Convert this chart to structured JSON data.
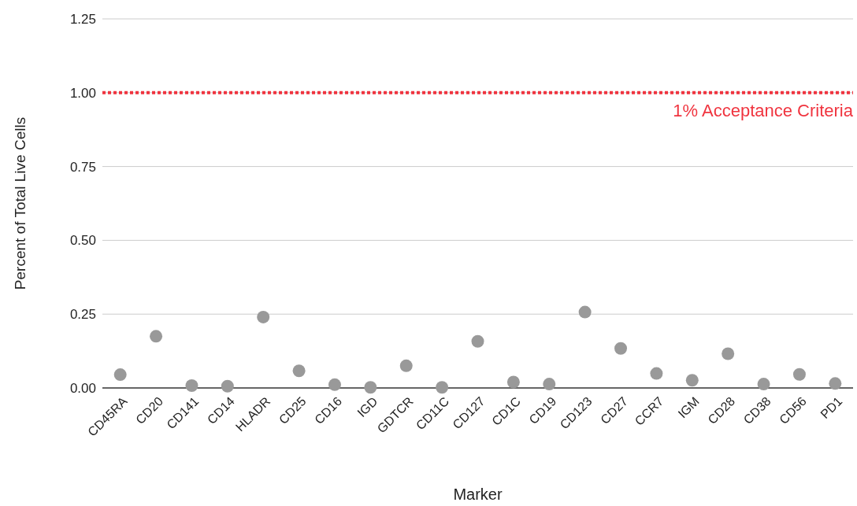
{
  "chart_data": {
    "type": "scatter",
    "xlabel": "Marker",
    "ylabel": "Percent of Total Live Cells",
    "categories": [
      "CD45RA",
      "CD20",
      "CD141",
      "CD14",
      "HLADR",
      "CD25",
      "CD16",
      "IGD",
      "GDTCR",
      "CD11C",
      "CD127",
      "CD1C",
      "CD19",
      "CD123",
      "CD27",
      "CCR7",
      "IGM",
      "CD28",
      "CD38",
      "CD56",
      "PD1"
    ],
    "series": [
      {
        "color": "#999999",
        "values": [
          0.045,
          0.175,
          0.008,
          0.006,
          0.24,
          0.058,
          0.011,
          0.002,
          0.075,
          0.002,
          0.158,
          0.02,
          0.013,
          0.257,
          0.134,
          0.049,
          0.026,
          0.116,
          0.013,
          0.046,
          0.015
        ]
      }
    ],
    "ylim": [
      0,
      1.25
    ],
    "yticks": [
      {
        "value": 0,
        "label": "0.00"
      },
      {
        "value": 0.25,
        "label": "0.25"
      },
      {
        "value": 0.5,
        "label": "0.50"
      },
      {
        "value": 0.75,
        "label": "0.75"
      },
      {
        "value": 1,
        "label": "1.00"
      },
      {
        "value": 1.25,
        "label": "1.25"
      }
    ],
    "grid": "y",
    "marker": "circle",
    "ref_lines": [
      {
        "axis": "y",
        "value": 1,
        "label": "1% Acceptance Criteria",
        "color": "#f0343f",
        "line_style": "dotted"
      }
    ]
  }
}
